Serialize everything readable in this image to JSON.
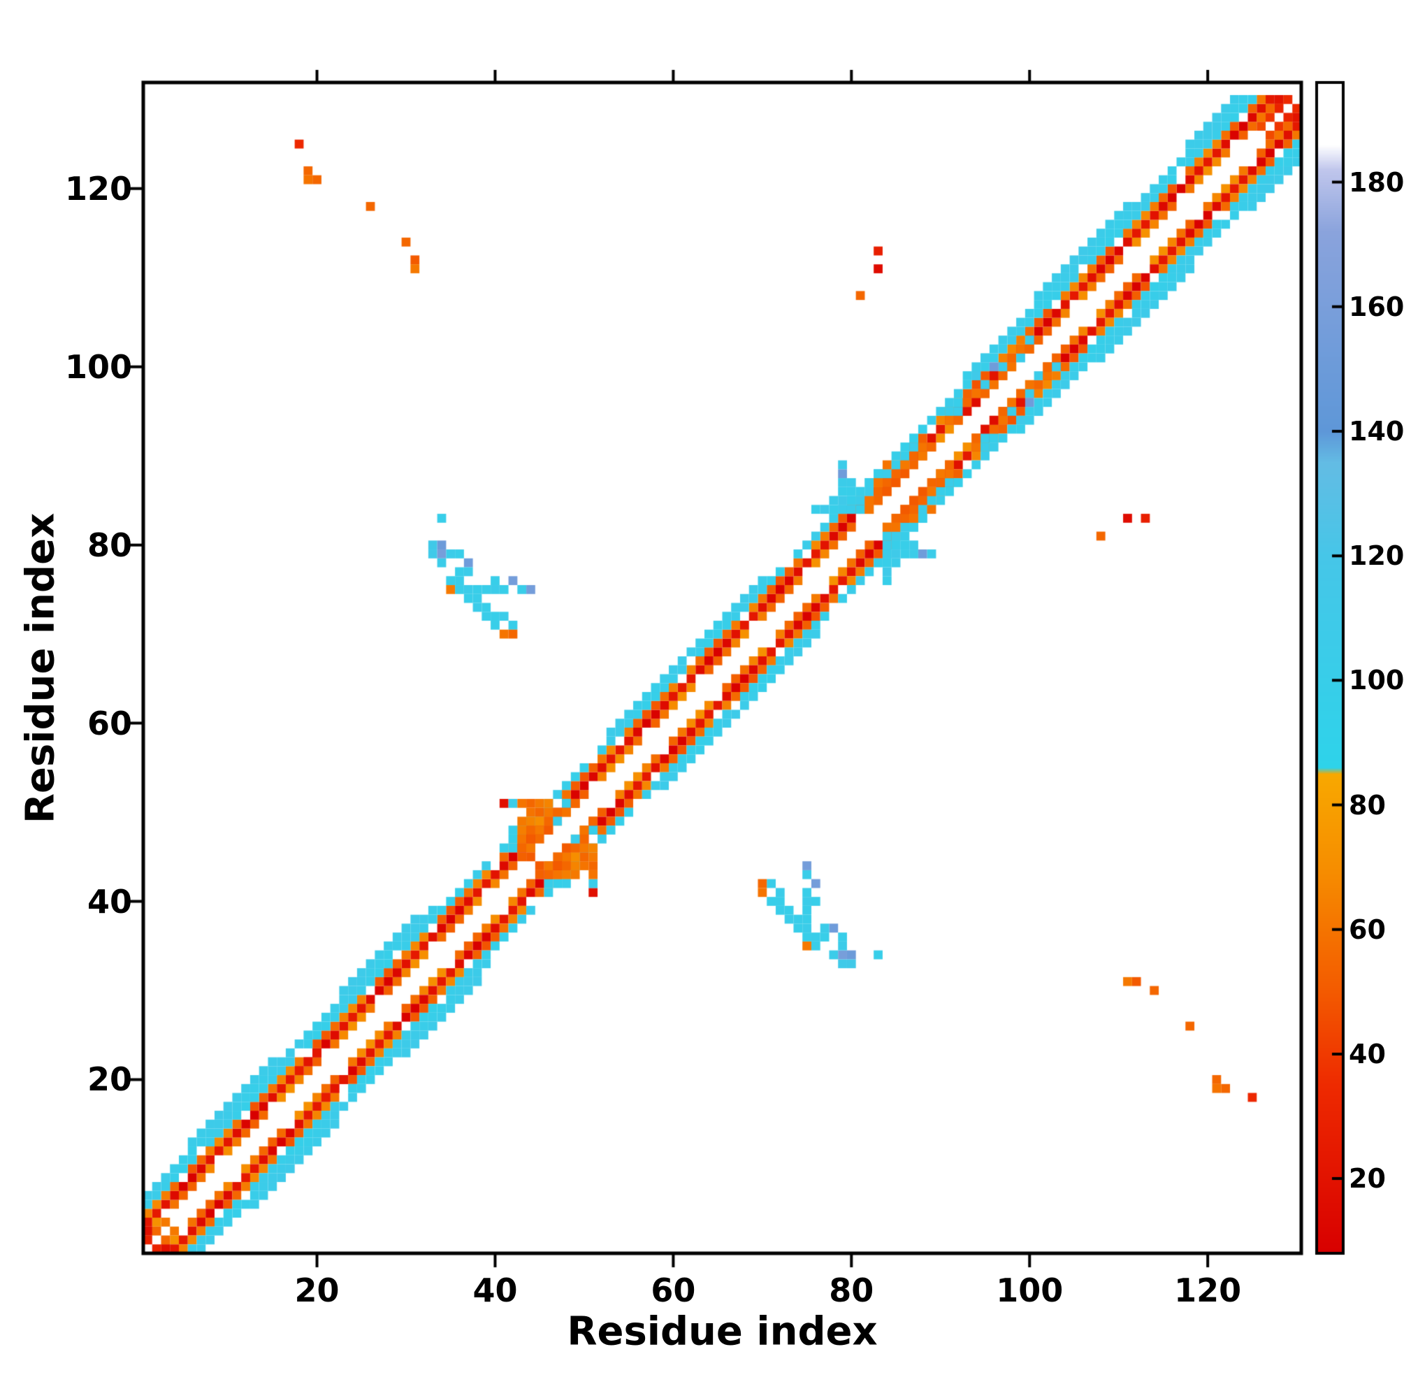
{
  "figure": {
    "background": "#ffffff",
    "axis_color": "#000000",
    "text_color": "#000000"
  },
  "chart_data": {
    "type": "heatmap",
    "title": "",
    "xlabel": "Residue index",
    "ylabel": "Residue index",
    "n_residues": 130,
    "x_ticks": [
      20,
      40,
      60,
      80,
      100,
      120
    ],
    "y_ticks": [
      20,
      40,
      60,
      80,
      100,
      120
    ],
    "x_range": [
      0.5,
      130.5
    ],
    "y_range": [
      0.5,
      130.5
    ],
    "grid": false,
    "symmetric": true,
    "background": "#ffffff",
    "colorbar": {
      "ticks": [
        20,
        40,
        60,
        80,
        100,
        120,
        140,
        160,
        180
      ],
      "vmin": 8,
      "vmax": 196,
      "position": "right"
    },
    "colormap_stops": [
      [
        8,
        "#d80000"
      ],
      [
        35,
        "#ee2a00"
      ],
      [
        50,
        "#f35a00"
      ],
      [
        70,
        "#f68e00"
      ],
      [
        85,
        "#f8a800"
      ],
      [
        86,
        "#2ed3ea"
      ],
      [
        120,
        "#46c6e8"
      ],
      [
        135,
        "#63bce4"
      ],
      [
        140,
        "#5e97d8"
      ],
      [
        172,
        "#8aa3dc"
      ],
      [
        182,
        "#c0c6ec"
      ],
      [
        186,
        "#ffffff"
      ],
      [
        196,
        "#ffffff"
      ]
    ],
    "bands": [
      {
        "offset": 2,
        "value": 62,
        "wobble": 10,
        "skip_mod": [
          6,
          3
        ]
      },
      {
        "offset": 3,
        "value": 16,
        "wobble": 8,
        "skip_mod": null
      },
      {
        "offset": 4,
        "value": 58,
        "wobble": 10,
        "skip_mod": [
          7,
          5
        ]
      },
      {
        "offset": 5,
        "value": 100,
        "wobble": 4,
        "skip_mod": [
          11,
          7
        ]
      },
      {
        "offset": 6,
        "value": 103,
        "wobble": 4,
        "ranges": [
          [
            1,
            33
          ],
          [
            53,
            70
          ],
          [
            95,
            130
          ]
        ]
      },
      {
        "offset": 7,
        "value": 106,
        "wobble": 3,
        "ranges": [
          [
            6,
            15
          ],
          [
            23,
            31
          ],
          [
            101,
            111
          ],
          [
            118,
            127
          ]
        ]
      }
    ],
    "cells": [
      [
        33,
        79,
        110
      ],
      [
        34,
        79,
        158
      ],
      [
        33,
        80,
        112
      ],
      [
        34,
        80,
        150
      ],
      [
        34,
        83,
        100
      ],
      [
        35,
        79,
        104
      ],
      [
        36,
        79,
        100
      ],
      [
        34,
        78,
        104
      ],
      [
        37,
        78,
        152
      ],
      [
        36,
        77,
        100
      ],
      [
        37,
        77,
        104
      ],
      [
        35,
        76,
        100
      ],
      [
        36,
        76,
        102
      ],
      [
        40,
        76,
        100
      ],
      [
        42,
        76,
        156
      ],
      [
        35,
        75,
        62
      ],
      [
        36,
        75,
        100
      ],
      [
        37,
        75,
        104
      ],
      [
        38,
        75,
        100
      ],
      [
        39,
        75,
        102
      ],
      [
        40,
        75,
        104
      ],
      [
        41,
        75,
        100
      ],
      [
        43,
        75,
        102
      ],
      [
        44,
        75,
        156
      ],
      [
        37,
        74,
        100
      ],
      [
        38,
        74,
        102
      ],
      [
        38,
        73,
        104
      ],
      [
        39,
        73,
        100
      ],
      [
        39,
        72,
        102
      ],
      [
        40,
        72,
        100
      ],
      [
        41,
        72,
        104
      ],
      [
        40,
        71,
        100
      ],
      [
        42,
        71,
        102
      ],
      [
        41,
        70,
        60
      ],
      [
        42,
        70,
        55
      ],
      [
        41,
        51,
        18
      ],
      [
        42,
        51,
        104
      ],
      [
        43,
        51,
        60
      ],
      [
        44,
        51,
        55
      ],
      [
        45,
        51,
        62
      ],
      [
        46,
        51,
        66
      ],
      [
        48,
        51,
        100
      ],
      [
        49,
        51,
        55
      ],
      [
        44,
        50,
        60
      ],
      [
        45,
        50,
        55
      ],
      [
        46,
        50,
        62
      ],
      [
        47,
        50,
        55
      ],
      [
        48,
        50,
        60
      ],
      [
        43,
        49,
        62
      ],
      [
        44,
        49,
        66
      ],
      [
        45,
        49,
        70
      ],
      [
        46,
        49,
        55
      ],
      [
        47,
        49,
        104
      ],
      [
        42,
        48,
        100
      ],
      [
        43,
        48,
        64
      ],
      [
        44,
        48,
        55
      ],
      [
        45,
        48,
        62
      ],
      [
        46,
        48,
        50
      ],
      [
        43,
        47,
        60
      ],
      [
        44,
        47,
        50
      ],
      [
        45,
        47,
        56
      ],
      [
        42,
        46,
        100
      ],
      [
        43,
        46,
        55
      ],
      [
        44,
        46,
        62
      ],
      [
        44,
        45,
        50
      ],
      [
        1,
        2,
        30
      ],
      [
        2,
        3,
        55
      ],
      [
        1,
        3,
        18
      ],
      [
        3,
        4,
        62
      ],
      [
        18,
        21,
        26
      ],
      [
        19,
        22,
        20
      ],
      [
        20,
        23,
        22
      ],
      [
        126,
        127,
        45
      ],
      [
        127,
        128,
        38
      ],
      [
        128,
        129,
        30
      ],
      [
        129,
        130,
        34
      ],
      [
        126,
        128,
        60
      ],
      [
        127,
        129,
        55
      ],
      [
        128,
        130,
        20
      ],
      [
        79,
        84,
        104
      ],
      [
        79,
        85,
        110
      ],
      [
        79,
        86,
        100
      ],
      [
        79,
        87,
        104
      ],
      [
        79,
        88,
        152
      ],
      [
        79,
        89,
        104
      ],
      [
        76,
        84,
        100
      ],
      [
        77,
        84,
        110
      ],
      [
        78,
        84,
        100
      ],
      [
        80,
        84,
        104
      ],
      [
        81,
        84,
        100
      ],
      [
        82,
        84,
        60
      ],
      [
        78,
        85,
        104
      ],
      [
        80,
        85,
        100
      ],
      [
        81,
        85,
        104
      ],
      [
        82,
        85,
        60
      ],
      [
        83,
        85,
        55
      ],
      [
        80,
        86,
        100
      ],
      [
        81,
        86,
        102
      ],
      [
        82,
        86,
        104
      ],
      [
        83,
        86,
        55
      ],
      [
        84,
        86,
        50
      ],
      [
        80,
        87,
        104
      ],
      [
        82,
        87,
        100
      ],
      [
        83,
        87,
        60
      ],
      [
        84,
        87,
        55
      ],
      [
        85,
        87,
        50
      ],
      [
        83,
        88,
        100
      ],
      [
        84,
        88,
        104
      ],
      [
        85,
        88,
        55
      ],
      [
        86,
        88,
        50
      ],
      [
        84,
        89,
        60
      ],
      [
        85,
        89,
        100
      ],
      [
        86,
        89,
        62
      ],
      [
        87,
        89,
        55
      ],
      [
        86,
        90,
        100
      ],
      [
        87,
        90,
        55
      ],
      [
        88,
        90,
        62
      ],
      [
        87,
        91,
        104
      ],
      [
        88,
        91,
        60
      ],
      [
        89,
        91,
        55
      ],
      [
        91,
        94,
        60
      ],
      [
        92,
        94,
        55
      ],
      [
        91,
        95,
        104
      ],
      [
        92,
        95,
        104
      ],
      [
        93,
        95,
        18
      ],
      [
        92,
        96,
        100
      ],
      [
        93,
        96,
        55
      ],
      [
        94,
        96,
        16
      ],
      [
        94,
        97,
        60
      ],
      [
        95,
        97,
        55
      ],
      [
        95,
        98,
        104
      ],
      [
        96,
        98,
        60
      ],
      [
        96,
        99,
        20
      ],
      [
        97,
        99,
        55
      ],
      [
        93,
        99,
        100
      ],
      [
        94,
        99,
        110
      ],
      [
        97,
        100,
        104
      ],
      [
        98,
        100,
        60
      ],
      [
        95,
        100,
        100
      ],
      [
        96,
        100,
        152
      ],
      [
        94,
        100,
        104
      ],
      [
        98,
        101,
        55
      ],
      [
        99,
        101,
        104
      ],
      [
        95,
        101,
        104
      ],
      [
        99,
        102,
        60
      ],
      [
        100,
        102,
        55
      ],
      [
        100,
        103,
        104
      ],
      [
        83,
        111,
        16
      ],
      [
        83,
        113,
        28
      ],
      [
        81,
        108,
        55
      ],
      [
        18,
        125,
        34
      ],
      [
        19,
        122,
        55
      ],
      [
        19,
        121,
        60
      ],
      [
        20,
        121,
        55
      ],
      [
        26,
        118,
        55
      ],
      [
        30,
        114,
        55
      ],
      [
        31,
        112,
        50
      ],
      [
        31,
        111,
        62
      ]
    ]
  }
}
